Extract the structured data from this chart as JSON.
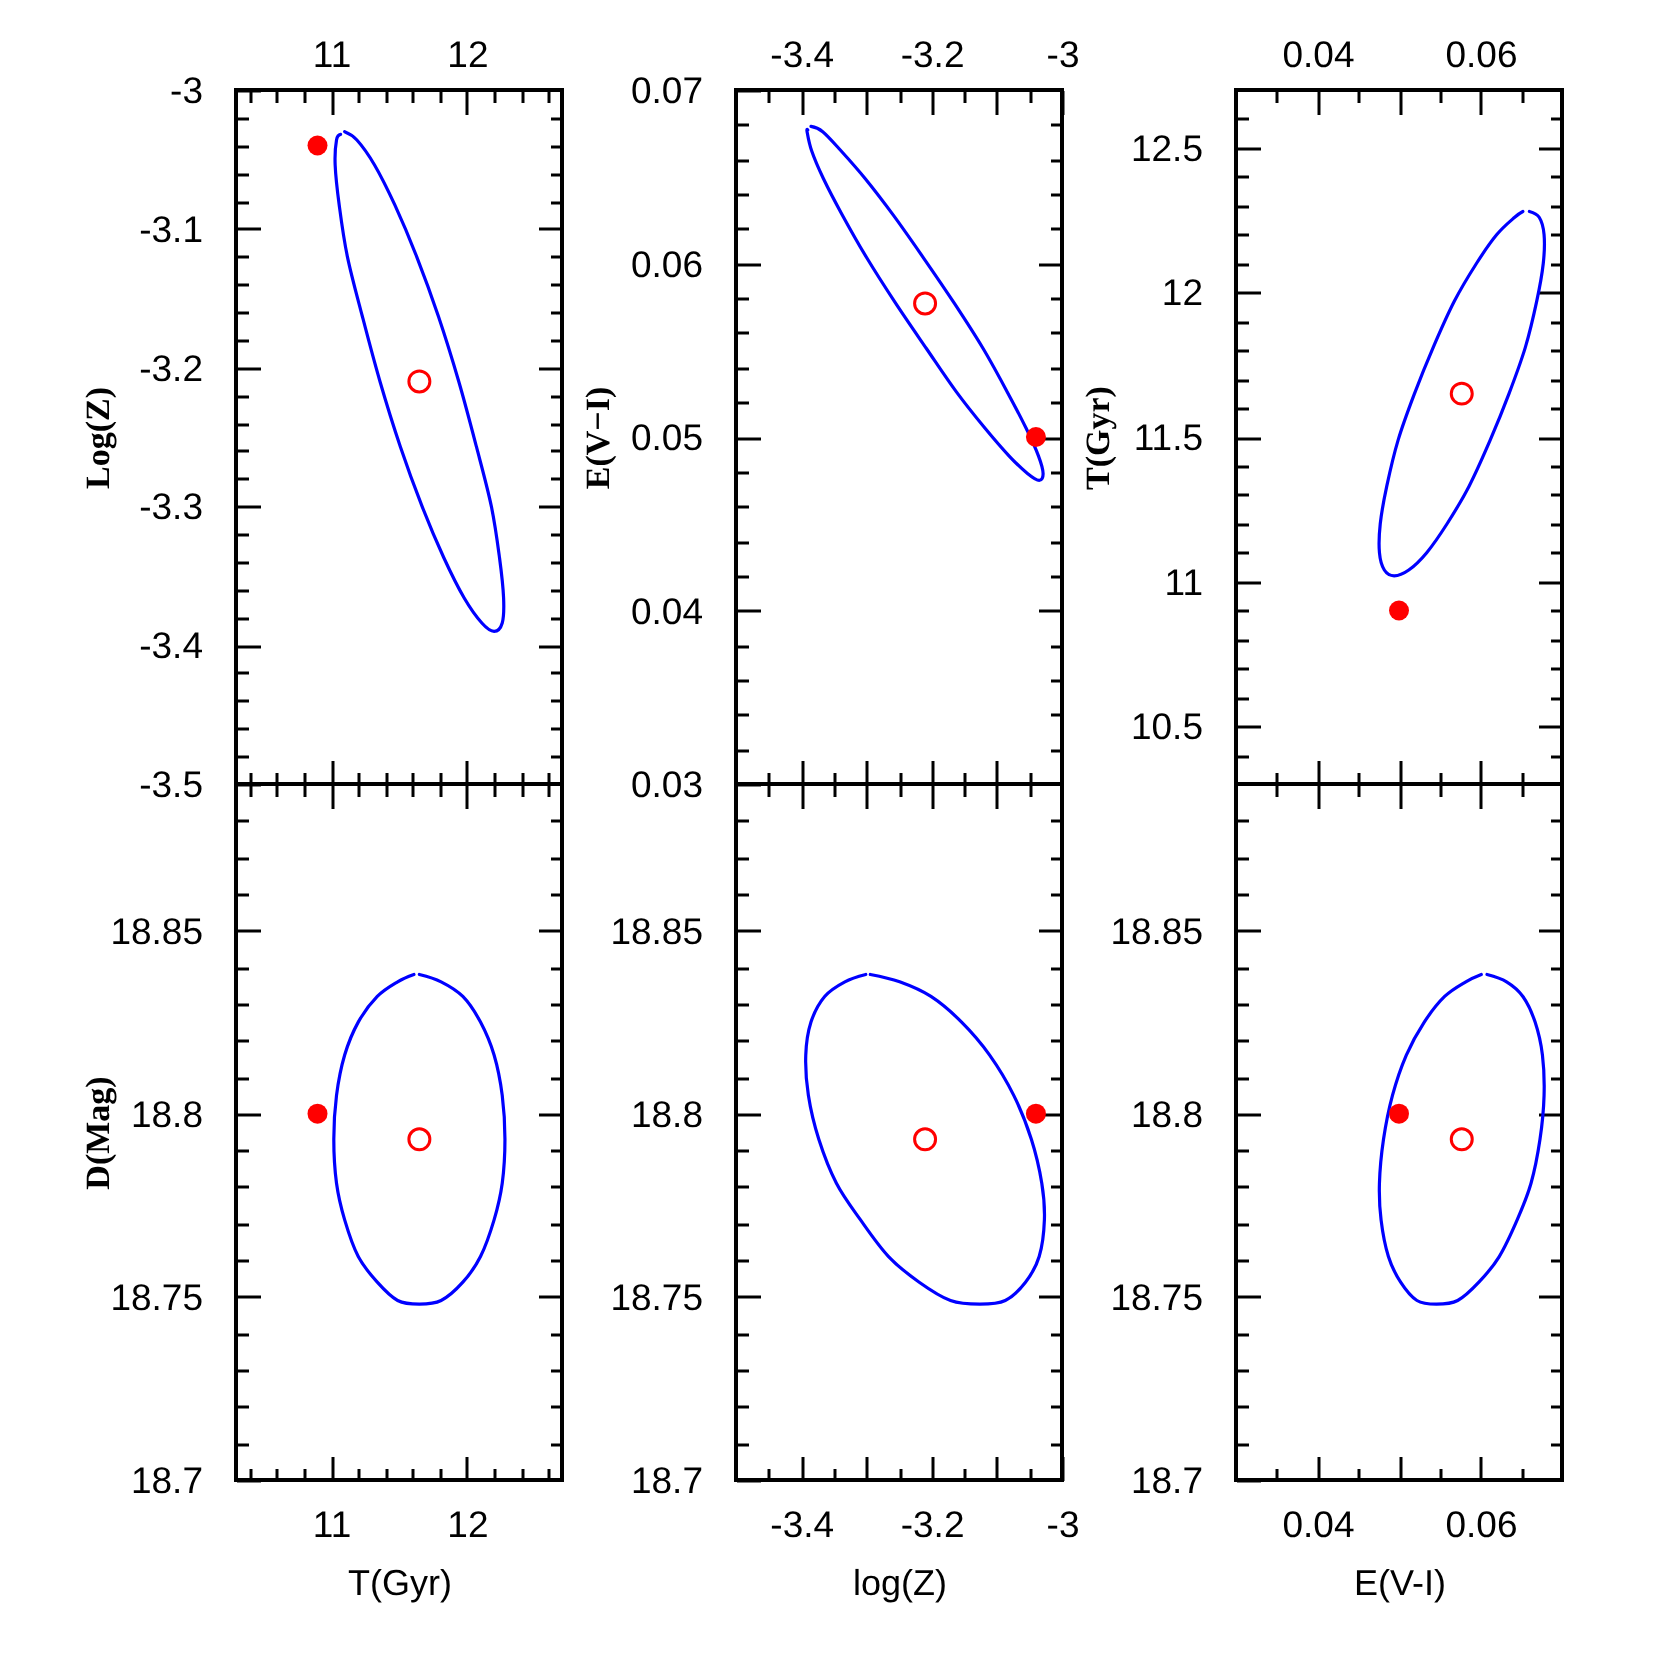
{
  "chart_data": [
    {
      "type": "scatter",
      "ylabel": "Log(Z)",
      "xlim": [
        10.3,
        12.7
      ],
      "xticks": [
        {
          "value": 10.4,
          "label": null
        },
        {
          "value": 10.6,
          "label": null
        },
        {
          "value": 10.8,
          "label": null
        },
        11,
        {
          "value": 11.2,
          "label": null
        },
        {
          "value": 11.4,
          "label": null
        },
        {
          "value": 11.6,
          "label": null
        },
        {
          "value": 11.8,
          "label": null
        },
        12,
        {
          "value": 12.2,
          "label": null
        },
        {
          "value": 12.4,
          "label": null
        },
        {
          "value": 12.6,
          "label": null
        }
      ],
      "ylim": [
        -3.5,
        -3
      ],
      "yticks": [
        -3.5,
        {
          "value": -3.48,
          "label": null
        },
        {
          "value": -3.46,
          "label": null
        },
        {
          "value": -3.44,
          "label": null
        },
        {
          "value": -3.42,
          "label": null
        },
        -3.4,
        {
          "value": -3.38,
          "label": null
        },
        {
          "value": -3.36,
          "label": null
        },
        {
          "value": -3.34,
          "label": null
        },
        {
          "value": -3.32,
          "label": null
        },
        -3.3,
        {
          "value": -3.28,
          "label": null
        },
        {
          "value": -3.26,
          "label": null
        },
        {
          "value": -3.24,
          "label": null
        },
        {
          "value": -3.22,
          "label": null
        },
        -3.2,
        {
          "value": -3.18,
          "label": null
        },
        {
          "value": -3.16,
          "label": null
        },
        {
          "value": -3.14,
          "label": null
        },
        {
          "value": -3.12,
          "label": null
        },
        -3.1,
        {
          "value": -3.08,
          "label": null
        },
        {
          "value": -3.06,
          "label": null
        },
        {
          "value": -3.04,
          "label": null
        },
        {
          "value": -3.02,
          "label": null
        },
        -3
      ],
      "series": [
        {
          "type": "line",
          "color": "#0000ff",
          "x": [
            11.1,
            11.19,
            11.32,
            11.47,
            11.63,
            11.79,
            11.94,
            12.07,
            12.18,
            12.24,
            12.27,
            12.26,
            12.2,
            12.11,
            11.98,
            11.83,
            11.67,
            11.51,
            11.36,
            11.23,
            11.12,
            11.06,
            11.03,
            11.04,
            11.07
          ],
          "values": [
            -3.03,
            -3.036,
            -3.054,
            -3.083,
            -3.12,
            -3.163,
            -3.21,
            -3.257,
            -3.3,
            -3.337,
            -3.366,
            -3.384,
            -3.39,
            -3.384,
            -3.366,
            -3.337,
            -3.3,
            -3.257,
            -3.21,
            -3.163,
            -3.12,
            -3.083,
            -3.054,
            -3.036,
            -3.032
          ]
        },
        {
          "color": "#ff0000",
          "marker": "circle",
          "x": [
            11.65
          ],
          "values": [
            -3.21
          ]
        },
        {
          "color": "#ff0000",
          "marker": "circle",
          "x": [
            10.9
          ],
          "values": [
            -3.04
          ]
        }
      ]
    },
    {
      "type": "scatter",
      "ylabel": "E(V−I)",
      "xlim": [
        -3.5,
        -3
      ],
      "xticks": [
        {
          "value": -3.45,
          "label": null
        },
        -3.4,
        {
          "value": -3.35,
          "label": null
        },
        {
          "value": -3.3,
          "label": null
        },
        {
          "value": -3.25,
          "label": null
        },
        -3.2,
        {
          "value": -3.15,
          "label": null
        },
        {
          "value": -3.1,
          "label": null
        },
        {
          "value": -3.05,
          "label": null
        },
        -3
      ],
      "ylim": [
        0.03,
        0.07
      ],
      "yticks": [
        0.03,
        {
          "value": 0.032,
          "label": null
        },
        {
          "value": 0.034,
          "label": null
        },
        {
          "value": 0.036,
          "label": null
        },
        {
          "value": 0.038,
          "label": null
        },
        0.04,
        {
          "value": 0.042,
          "label": null
        },
        {
          "value": 0.044,
          "label": null
        },
        {
          "value": 0.046,
          "label": null
        },
        {
          "value": 0.048,
          "label": null
        },
        0.05,
        {
          "value": 0.052,
          "label": null
        },
        {
          "value": 0.054,
          "label": null
        },
        {
          "value": 0.056,
          "label": null
        },
        {
          "value": 0.058,
          "label": null
        },
        0.06,
        {
          "value": 0.062,
          "label": null
        },
        {
          "value": 0.064,
          "label": null
        },
        {
          "value": 0.066,
          "label": null
        },
        {
          "value": 0.068,
          "label": null
        },
        0.07
      ],
      "series": [
        {
          "type": "line",
          "color": "#0000ff",
          "x": [
            -3.385,
            -3.367,
            -3.339,
            -3.302,
            -3.259,
            -3.212,
            -3.165,
            -3.121,
            -3.084,
            -3.055,
            -3.036,
            -3.029,
            -3.035,
            -3.053,
            -3.081,
            -3.118,
            -3.162,
            -3.208,
            -3.255,
            -3.299,
            -3.337,
            -3.366,
            -3.384,
            -3.391,
            -3.39
          ],
          "values": [
            0.0679,
            0.0676,
            0.0665,
            0.0649,
            0.0628,
            0.0603,
            0.0577,
            0.0551,
            0.0526,
            0.0505,
            0.0489,
            0.0479,
            0.0475,
            0.0479,
            0.0489,
            0.0505,
            0.0526,
            0.0551,
            0.0577,
            0.0603,
            0.0628,
            0.0649,
            0.0665,
            0.0676,
            0.0677
          ]
        },
        {
          "color": "#ff0000",
          "marker": "circle",
          "x": [
            -3.21
          ],
          "values": [
            0.0577
          ]
        },
        {
          "color": "#ff0000",
          "marker": "circle",
          "x": [
            -3.04
          ],
          "values": [
            0.05
          ]
        }
      ]
    },
    {
      "type": "scatter",
      "ylabel": "T(Gyr)",
      "xlim": [
        0.03,
        0.07
      ],
      "xticks": [
        {
          "value": 0.035,
          "label": null
        },
        0.04,
        {
          "value": 0.045,
          "label": null
        },
        {
          "value": 0.05,
          "label": null
        },
        {
          "value": 0.055,
          "label": null
        },
        0.06,
        {
          "value": 0.065,
          "label": null
        }
      ],
      "ylim": [
        10.3,
        12.7
      ],
      "yticks": [
        {
          "value": 10.4,
          "label": null
        },
        10.5,
        {
          "value": 10.6,
          "label": null
        },
        {
          "value": 10.7,
          "label": null
        },
        {
          "value": 10.8,
          "label": null
        },
        {
          "value": 10.9,
          "label": null
        },
        11,
        {
          "value": 11.1,
          "label": null
        },
        {
          "value": 11.2,
          "label": null
        },
        {
          "value": 11.3,
          "label": null
        },
        {
          "value": 11.4,
          "label": null
        },
        11.5,
        {
          "value": 11.6,
          "label": null
        },
        {
          "value": 11.7,
          "label": null
        },
        {
          "value": 11.8,
          "label": null
        },
        {
          "value": 11.9,
          "label": null
        },
        12,
        {
          "value": 12.1,
          "label": null
        },
        {
          "value": 12.2,
          "label": null
        },
        {
          "value": 12.3,
          "label": null
        },
        {
          "value": 12.4,
          "label": null
        },
        12.5,
        {
          "value": 12.6,
          "label": null
        }
      ],
      "series": [
        {
          "type": "line",
          "color": "#0000ff",
          "x": [
            0.066,
            0.0672,
            0.0678,
            0.0677,
            0.0669,
            0.0655,
            0.0635,
            0.0612,
            0.0586,
            0.0559,
            0.0534,
            0.0512,
            0.0494,
            0.0482,
            0.0476,
            0.0477,
            0.0485,
            0.0499,
            0.0519,
            0.0542,
            0.0568,
            0.0595,
            0.062,
            0.0642,
            0.0652
          ],
          "values": [
            12.28,
            12.26,
            12.2,
            12.1,
            11.97,
            11.81,
            11.65,
            11.49,
            11.33,
            11.2,
            11.1,
            11.04,
            11.02,
            11.04,
            11.1,
            11.2,
            11.33,
            11.49,
            11.65,
            11.81,
            11.97,
            12.1,
            12.2,
            12.26,
            12.28
          ]
        },
        {
          "color": "#ff0000",
          "marker": "circle",
          "x": [
            0.0577
          ],
          "values": [
            11.65
          ]
        },
        {
          "color": "#ff0000",
          "marker": "circle",
          "x": [
            0.05
          ],
          "values": [
            10.9
          ]
        }
      ]
    },
    {
      "type": "scatter",
      "xlabel": "T(Gyr)",
      "ylabel": "D(Mag)",
      "xlim": [
        10.3,
        12.7
      ],
      "xticks": [
        {
          "value": 10.4,
          "label": null
        },
        {
          "value": 10.6,
          "label": null
        },
        {
          "value": 10.8,
          "label": null
        },
        11,
        {
          "value": 11.2,
          "label": null
        },
        {
          "value": 11.4,
          "label": null
        },
        {
          "value": 11.6,
          "label": null
        },
        {
          "value": 11.8,
          "label": null
        },
        12,
        {
          "value": 12.2,
          "label": null
        },
        {
          "value": 12.4,
          "label": null
        },
        {
          "value": 12.6,
          "label": null
        }
      ],
      "ylim": [
        18.7,
        18.89
      ],
      "yticks": [
        18.7,
        {
          "value": 18.71,
          "label": null
        },
        {
          "value": 18.72,
          "label": null
        },
        {
          "value": 18.73,
          "label": null
        },
        {
          "value": 18.74,
          "label": null
        },
        18.75,
        {
          "value": 18.76,
          "label": null
        },
        {
          "value": 18.77,
          "label": null
        },
        {
          "value": 18.78,
          "label": null
        },
        {
          "value": 18.79,
          "label": null
        },
        18.8,
        {
          "value": 18.81,
          "label": null
        },
        {
          "value": 18.82,
          "label": null
        },
        {
          "value": 18.83,
          "label": null
        },
        {
          "value": 18.84,
          "label": null
        },
        18.85,
        {
          "value": 18.86,
          "label": null
        },
        {
          "value": 18.87,
          "label": null
        },
        {
          "value": 18.88,
          "label": null
        }
      ],
      "series": [
        {
          "type": "line",
          "color": "#0000ff",
          "x": [
            11.65,
            11.81,
            11.97,
            12.1,
            12.2,
            12.26,
            12.28,
            12.26,
            12.2,
            12.1,
            11.97,
            11.81,
            11.65,
            11.49,
            11.34,
            11.2,
            11.1,
            11.04,
            11.02,
            11.04,
            11.1,
            11.2,
            11.34,
            11.49,
            11.61
          ],
          "values": [
            18.838,
            18.836,
            18.832,
            18.825,
            18.816,
            18.805,
            18.793,
            18.781,
            18.771,
            18.761,
            18.754,
            18.749,
            18.748,
            18.749,
            18.754,
            18.761,
            18.771,
            18.781,
            18.793,
            18.805,
            18.816,
            18.825,
            18.832,
            18.836,
            18.838
          ]
        },
        {
          "color": "#ff0000",
          "marker": "circle",
          "x": [
            11.65
          ],
          "values": [
            18.793
          ]
        },
        {
          "color": "#ff0000",
          "marker": "circle",
          "x": [
            10.9
          ],
          "values": [
            18.8
          ]
        }
      ]
    },
    {
      "type": "scatter",
      "xlabel": "log(Z)",
      "xlim": [
        -3.5,
        -3
      ],
      "xticks": [
        {
          "value": -3.45,
          "label": null
        },
        -3.4,
        {
          "value": -3.35,
          "label": null
        },
        {
          "value": -3.3,
          "label": null
        },
        {
          "value": -3.25,
          "label": null
        },
        -3.2,
        {
          "value": -3.15,
          "label": null
        },
        {
          "value": -3.1,
          "label": null
        },
        {
          "value": -3.05,
          "label": null
        },
        -3
      ],
      "ylim": [
        18.7,
        18.89
      ],
      "yticks": [
        18.7,
        {
          "value": 18.71,
          "label": null
        },
        {
          "value": 18.72,
          "label": null
        },
        {
          "value": 18.73,
          "label": null
        },
        {
          "value": 18.74,
          "label": null
        },
        18.75,
        {
          "value": 18.76,
          "label": null
        },
        {
          "value": 18.77,
          "label": null
        },
        {
          "value": 18.78,
          "label": null
        },
        {
          "value": 18.79,
          "label": null
        },
        18.8,
        {
          "value": 18.81,
          "label": null
        },
        {
          "value": 18.82,
          "label": null
        },
        {
          "value": 18.83,
          "label": null
        },
        {
          "value": 18.84,
          "label": null
        },
        18.85,
        {
          "value": 18.86,
          "label": null
        },
        {
          "value": 18.87,
          "label": null
        },
        {
          "value": 18.88,
          "label": null
        }
      ],
      "series": [
        {
          "type": "line",
          "color": "#0000ff",
          "x": [
            -3.294,
            -3.249,
            -3.201,
            -3.154,
            -3.111,
            -3.074,
            -3.047,
            -3.031,
            -3.027,
            -3.035,
            -3.056,
            -3.087,
            -3.126,
            -3.171,
            -3.219,
            -3.266,
            -3.309,
            -3.346,
            -3.373,
            -3.389,
            -3.393,
            -3.385,
            -3.364,
            -3.333,
            -3.301
          ],
          "values": [
            18.838,
            18.836,
            18.832,
            18.825,
            18.816,
            18.805,
            18.793,
            18.781,
            18.771,
            18.761,
            18.754,
            18.749,
            18.748,
            18.749,
            18.754,
            18.761,
            18.771,
            18.781,
            18.793,
            18.805,
            18.816,
            18.825,
            18.832,
            18.836,
            18.838
          ]
        },
        {
          "color": "#ff0000",
          "marker": "circle",
          "x": [
            -3.21
          ],
          "values": [
            18.793
          ]
        },
        {
          "color": "#ff0000",
          "marker": "circle",
          "x": [
            -3.04
          ],
          "values": [
            18.8
          ]
        }
      ]
    },
    {
      "type": "scatter",
      "xlabel": "E(V-I)",
      "xlim": [
        0.03,
        0.07
      ],
      "xticks": [
        {
          "value": 0.035,
          "label": null
        },
        0.04,
        {
          "value": 0.045,
          "label": null
        },
        {
          "value": 0.05,
          "label": null
        },
        {
          "value": 0.055,
          "label": null
        },
        0.06,
        {
          "value": 0.065,
          "label": null
        }
      ],
      "ylim": [
        18.7,
        18.89
      ],
      "yticks": [
        18.7,
        {
          "value": 18.71,
          "label": null
        },
        {
          "value": 18.72,
          "label": null
        },
        {
          "value": 18.73,
          "label": null
        },
        {
          "value": 18.74,
          "label": null
        },
        18.75,
        {
          "value": 18.76,
          "label": null
        },
        {
          "value": 18.77,
          "label": null
        },
        {
          "value": 18.78,
          "label": null
        },
        {
          "value": 18.79,
          "label": null
        },
        18.8,
        {
          "value": 18.81,
          "label": null
        },
        {
          "value": 18.82,
          "label": null
        },
        {
          "value": 18.83,
          "label": null
        },
        {
          "value": 18.84,
          "label": null
        },
        18.85,
        {
          "value": 18.86,
          "label": null
        },
        {
          "value": 18.87,
          "label": null
        },
        {
          "value": 18.88,
          "label": null
        }
      ],
      "series": [
        {
          "type": "line",
          "color": "#0000ff",
          "x": [
            0.0608,
            0.0632,
            0.0652,
            0.0667,
            0.0676,
            0.0678,
            0.0673,
            0.0662,
            0.0645,
            0.0623,
            0.0598,
            0.0572,
            0.0546,
            0.0522,
            0.0502,
            0.0487,
            0.0478,
            0.0476,
            0.0481,
            0.0492,
            0.0509,
            0.0531,
            0.0556,
            0.0582,
            0.0601
          ],
          "values": [
            18.838,
            18.836,
            18.832,
            18.825,
            18.816,
            18.805,
            18.793,
            18.781,
            18.771,
            18.761,
            18.754,
            18.749,
            18.748,
            18.749,
            18.754,
            18.761,
            18.771,
            18.781,
            18.793,
            18.805,
            18.816,
            18.825,
            18.832,
            18.836,
            18.838
          ]
        },
        {
          "color": "#ff0000",
          "marker": "circle",
          "x": [
            0.0577
          ],
          "values": [
            18.793
          ]
        },
        {
          "color": "#ff0000",
          "marker": "circle",
          "x": [
            0.05
          ],
          "values": [
            18.8
          ]
        }
      ]
    }
  ]
}
